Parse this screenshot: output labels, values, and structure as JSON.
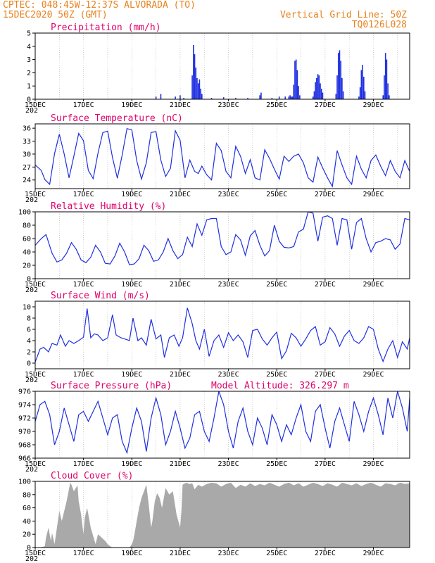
{
  "header": {
    "line1_left": "CPTEC:   048:45W-12:37S   ALVORADA (TO)",
    "line2_left": "15DEC2020 50Z (GMT)",
    "line1_right": "Vertical Grid Line: 50Z",
    "line2_right": "TQ0126L028"
  },
  "colors": {
    "header": "#e8821e",
    "panel_title": "#e0006a",
    "series": "#1f2fe0",
    "cloud": "#a9a9a9",
    "grid": "#b4b4b4"
  },
  "x_axis": {
    "tick_labels": [
      "15DEC",
      "17DEC",
      "19DEC",
      "21DEC",
      "23DEC",
      "25DEC",
      "27DEC",
      "29DEC"
    ],
    "year_fragment": "202",
    "range_days": [
      0,
      15.5
    ]
  },
  "chart_data": [
    {
      "id": "precip",
      "type": "bar",
      "title": "Precipitation (mm/h)",
      "ylim": [
        0,
        5
      ],
      "yticks": [
        0,
        1,
        2,
        3,
        4,
        5
      ],
      "bars": [
        [
          5.0,
          0.2
        ],
        [
          5.2,
          0.4
        ],
        [
          5.8,
          0.2
        ],
        [
          6.0,
          0.3
        ],
        [
          6.15,
          0.1
        ],
        [
          6.5,
          1.8
        ],
        [
          6.55,
          4.1
        ],
        [
          6.6,
          3.4
        ],
        [
          6.65,
          2.4
        ],
        [
          6.7,
          1.6
        ],
        [
          6.75,
          1.2
        ],
        [
          6.8,
          1.5
        ],
        [
          6.85,
          0.8
        ],
        [
          6.9,
          0.4
        ],
        [
          7.3,
          0.1
        ],
        [
          7.8,
          0.15
        ],
        [
          8.3,
          0.1
        ],
        [
          8.8,
          0.1
        ],
        [
          9.3,
          0.3
        ],
        [
          9.35,
          0.5
        ],
        [
          9.8,
          0.1
        ],
        [
          10.1,
          0.2
        ],
        [
          10.35,
          0.2
        ],
        [
          10.5,
          0.2
        ],
        [
          10.55,
          0.3
        ],
        [
          10.6,
          0.2
        ],
        [
          10.65,
          0.2
        ],
        [
          10.7,
          1.1
        ],
        [
          10.75,
          2.9
        ],
        [
          10.8,
          3.0
        ],
        [
          10.85,
          2.2
        ],
        [
          10.9,
          1.0
        ],
        [
          10.95,
          0.3
        ],
        [
          11.5,
          0.2
        ],
        [
          11.55,
          0.6
        ],
        [
          11.6,
          1.3
        ],
        [
          11.65,
          1.6
        ],
        [
          11.7,
          1.9
        ],
        [
          11.75,
          1.8
        ],
        [
          11.8,
          1.2
        ],
        [
          11.85,
          0.8
        ],
        [
          11.9,
          0.5
        ],
        [
          12.45,
          0.4
        ],
        [
          12.5,
          1.8
        ],
        [
          12.55,
          3.5
        ],
        [
          12.6,
          3.7
        ],
        [
          12.65,
          2.9
        ],
        [
          12.7,
          1.6
        ],
        [
          12.75,
          0.6
        ],
        [
          13.4,
          0.2
        ],
        [
          13.45,
          0.9
        ],
        [
          13.5,
          2.2
        ],
        [
          13.55,
          2.6
        ],
        [
          13.6,
          1.7
        ],
        [
          13.65,
          0.6
        ],
        [
          14.4,
          0.3
        ],
        [
          14.45,
          1.8
        ],
        [
          14.5,
          3.5
        ],
        [
          14.55,
          3.0
        ],
        [
          14.6,
          1.2
        ],
        [
          14.65,
          0.3
        ]
      ]
    },
    {
      "id": "temp",
      "type": "line",
      "title": "Surface Temperature (nC)",
      "ylim": [
        22,
        37
      ],
      "yticks": [
        24,
        27,
        30,
        33,
        36
      ],
      "x": [
        0,
        0.25,
        0.4,
        0.6,
        0.8,
        1.0,
        1.2,
        1.4,
        1.6,
        1.8,
        2.0,
        2.2,
        2.4,
        2.6,
        2.8,
        3.0,
        3.2,
        3.4,
        3.6,
        3.8,
        4.0,
        4.2,
        4.4,
        4.6,
        4.8,
        5.0,
        5.2,
        5.4,
        5.6,
        5.8,
        6.0,
        6.2,
        6.4,
        6.6,
        6.75,
        6.9,
        7.1,
        7.3,
        7.5,
        7.7,
        7.9,
        8.1,
        8.3,
        8.5,
        8.7,
        8.9,
        9.1,
        9.3,
        9.5,
        9.7,
        9.9,
        10.1,
        10.3,
        10.5,
        10.7,
        10.9,
        11.1,
        11.3,
        11.5,
        11.7,
        11.9,
        12.1,
        12.3,
        12.5,
        12.7,
        12.9,
        13.1,
        13.3,
        13.5,
        13.7,
        13.9,
        14.1,
        14.3,
        14.5,
        14.7,
        14.9,
        15.1,
        15.3,
        15.5
      ],
      "values": [
        27.5,
        26.2,
        24.1,
        23.0,
        30.1,
        34.6,
        30.0,
        24.5,
        29.5,
        34.8,
        33.1,
        26.2,
        24.3,
        30.2,
        35.0,
        35.3,
        29.2,
        24.4,
        29.8,
        35.9,
        35.6,
        28.5,
        24.2,
        28.0,
        35.0,
        35.2,
        28.6,
        24.8,
        26.7,
        35.4,
        33.2,
        24.5,
        28.6,
        26.0,
        25.5,
        27.2,
        25.2,
        24.0,
        32.5,
        30.8,
        26.0,
        24.5,
        31.8,
        29.5,
        25.5,
        28.7,
        24.5,
        24.0,
        31.0,
        29.0,
        26.5,
        24.2,
        29.5,
        28.3,
        29.5,
        30.0,
        28.0,
        24.5,
        23.5,
        29.3,
        26.8,
        24.5,
        22.5,
        30.8,
        27.5,
        24.5,
        23.0,
        29.5,
        26.5,
        24.5,
        28.5,
        29.8,
        27.2,
        25.0,
        28.5,
        26.0,
        24.5,
        28.5,
        26.0
      ]
    },
    {
      "id": "rh",
      "type": "line",
      "title": "Relative Humidity (%)",
      "ylim": [
        0,
        100
      ],
      "yticks": [
        0,
        20,
        40,
        60,
        80,
        100
      ],
      "x": [
        0,
        0.25,
        0.45,
        0.7,
        0.9,
        1.1,
        1.3,
        1.5,
        1.7,
        1.9,
        2.1,
        2.3,
        2.5,
        2.7,
        2.9,
        3.1,
        3.3,
        3.5,
        3.7,
        3.9,
        4.1,
        4.3,
        4.5,
        4.7,
        4.9,
        5.1,
        5.3,
        5.5,
        5.7,
        5.9,
        6.1,
        6.3,
        6.5,
        6.7,
        6.9,
        7.1,
        7.3,
        7.5,
        7.7,
        7.9,
        8.1,
        8.3,
        8.5,
        8.7,
        8.9,
        9.1,
        9.3,
        9.5,
        9.7,
        9.9,
        10.1,
        10.3,
        10.5,
        10.7,
        10.9,
        11.1,
        11.3,
        11.5,
        11.7,
        11.9,
        12.1,
        12.3,
        12.5,
        12.7,
        12.9,
        13.1,
        13.3,
        13.5,
        13.7,
        13.9,
        14.1,
        14.3,
        14.5,
        14.7,
        14.9,
        15.1,
        15.3,
        15.5
      ],
      "values": [
        50,
        60,
        66,
        38,
        25,
        28,
        38,
        54,
        44,
        28,
        24,
        32,
        50,
        40,
        23,
        22,
        34,
        53,
        40,
        21,
        22,
        30,
        50,
        42,
        26,
        28,
        40,
        60,
        42,
        30,
        36,
        62,
        48,
        82,
        65,
        88,
        90,
        90,
        48,
        36,
        40,
        66,
        58,
        35,
        64,
        72,
        50,
        34,
        42,
        80,
        56,
        47,
        46,
        48,
        70,
        74,
        100,
        98,
        56,
        92,
        94,
        90,
        50,
        90,
        88,
        44,
        84,
        90,
        60,
        40,
        54,
        56,
        60,
        58,
        44,
        52,
        90,
        88
      ]
    },
    {
      "id": "wind",
      "type": "line",
      "title": "Surface Wind (m/s)",
      "ylim": [
        -1,
        11
      ],
      "yticks": [
        0,
        2,
        4,
        6,
        8,
        10
      ],
      "x": [
        0,
        0.2,
        0.35,
        0.55,
        0.7,
        0.9,
        1.05,
        1.25,
        1.4,
        1.6,
        1.8,
        2.0,
        2.15,
        2.3,
        2.45,
        2.6,
        2.8,
        3.0,
        3.2,
        3.35,
        3.55,
        3.7,
        3.9,
        4.05,
        4.25,
        4.4,
        4.6,
        4.8,
        5.0,
        5.2,
        5.35,
        5.55,
        5.75,
        5.95,
        6.1,
        6.3,
        6.5,
        6.65,
        6.8,
        7.0,
        7.2,
        7.4,
        7.6,
        7.8,
        8.0,
        8.2,
        8.4,
        8.6,
        8.8,
        9.0,
        9.2,
        9.4,
        9.6,
        9.8,
        10.0,
        10.2,
        10.4,
        10.6,
        10.8,
        11.0,
        11.2,
        11.4,
        11.6,
        11.8,
        12.0,
        12.2,
        12.4,
        12.6,
        12.8,
        13.0,
        13.2,
        13.4,
        13.6,
        13.8,
        14.0,
        14.2,
        14.4,
        14.6,
        14.8,
        15.0,
        15.2,
        15.4,
        15.5
      ],
      "values": [
        0.2,
        2.5,
        2.8,
        2.0,
        3.5,
        3.2,
        5.0,
        3.0,
        4.0,
        3.5,
        4.0,
        4.6,
        9.7,
        4.5,
        5.2,
        5.0,
        4.0,
        4.5,
        8.6,
        5.0,
        4.5,
        4.3,
        4.0,
        8.0,
        4.0,
        4.5,
        3.2,
        7.8,
        4.3,
        5.0,
        1.0,
        4.5,
        5.0,
        3.0,
        4.5,
        9.8,
        7.0,
        4.0,
        2.5,
        6.0,
        1.2,
        4.0,
        5.0,
        2.8,
        5.4,
        4.0,
        5.0,
        3.8,
        1.0,
        5.8,
        6.0,
        4.3,
        3.2,
        4.5,
        5.5,
        0.8,
        2.2,
        5.3,
        4.5,
        3.0,
        4.3,
        5.8,
        6.5,
        3.2,
        3.8,
        6.3,
        5.2,
        3.0,
        4.8,
        5.8,
        4.0,
        3.5,
        4.5,
        6.5,
        6.0,
        2.5,
        0.3,
        2.5,
        4.0,
        1.0,
        3.8,
        2.5,
        4.5
      ]
    },
    {
      "id": "pressure",
      "type": "line",
      "title": "Surface Pressure (hPa)",
      "annotation": "Model Altitude: 326.297 m",
      "ylim": [
        966,
        976
      ],
      "yticks": [
        966,
        968,
        970,
        972,
        974,
        976
      ],
      "x": [
        0,
        0.2,
        0.4,
        0.6,
        0.8,
        1.0,
        1.2,
        1.4,
        1.6,
        1.8,
        2.0,
        2.2,
        2.4,
        2.6,
        2.8,
        3.0,
        3.2,
        3.4,
        3.6,
        3.8,
        4.0,
        4.2,
        4.4,
        4.6,
        4.8,
        5.0,
        5.2,
        5.4,
        5.6,
        5.8,
        6.0,
        6.2,
        6.4,
        6.6,
        6.8,
        7.0,
        7.2,
        7.4,
        7.6,
        7.8,
        8.0,
        8.2,
        8.4,
        8.6,
        8.8,
        9.0,
        9.2,
        9.4,
        9.6,
        9.8,
        10.0,
        10.2,
        10.4,
        10.6,
        10.8,
        11.0,
        11.2,
        11.4,
        11.6,
        11.8,
        12.0,
        12.2,
        12.4,
        12.6,
        12.8,
        13.0,
        13.2,
        13.4,
        13.6,
        13.8,
        14.0,
        14.2,
        14.4,
        14.6,
        14.8,
        15.0,
        15.2,
        15.4,
        15.5
      ],
      "values": [
        971.5,
        974.0,
        974.5,
        972.5,
        968.0,
        970.0,
        973.5,
        971.0,
        968.5,
        972.5,
        973.0,
        971.5,
        973.0,
        974.5,
        972.0,
        969.5,
        972.0,
        972.5,
        968.5,
        966.8,
        970.5,
        973.5,
        971.5,
        967.0,
        972.0,
        975.0,
        972.5,
        968.0,
        970.0,
        973.0,
        970.5,
        967.5,
        969.0,
        972.5,
        973.0,
        970.0,
        968.5,
        972.0,
        976.0,
        974.0,
        970.0,
        967.5,
        971.5,
        973.5,
        970.0,
        968.0,
        972.0,
        970.5,
        968.0,
        972.5,
        971.0,
        968.5,
        971.0,
        969.5,
        972.0,
        974.0,
        970.0,
        968.5,
        973.0,
        974.0,
        970.5,
        967.5,
        971.5,
        973.5,
        971.0,
        968.5,
        974.5,
        972.5,
        970.0,
        973.0,
        975.0,
        972.5,
        969.5,
        975.0,
        972.0,
        976.0,
        973.5,
        970.0,
        975.0
      ]
    },
    {
      "id": "cloud",
      "type": "area",
      "title": "Cloud Cover (%)",
      "ylim": [
        0,
        100
      ],
      "yticks": [
        0,
        20,
        40,
        60,
        80,
        100
      ],
      "x": [
        0,
        0.2,
        0.4,
        0.45,
        0.55,
        0.65,
        0.7,
        0.8,
        0.9,
        1.0,
        1.1,
        1.3,
        1.45,
        1.5,
        1.6,
        1.75,
        1.8,
        1.9,
        2.0,
        2.05,
        2.15,
        2.3,
        2.5,
        2.6,
        2.75,
        2.9,
        3.0,
        3.1,
        3.2,
        3.3,
        3.5,
        3.7,
        3.9,
        4.0,
        4.05,
        4.1,
        4.2,
        4.3,
        4.4,
        4.5,
        4.6,
        4.7,
        4.8,
        4.85,
        4.95,
        5.05,
        5.15,
        5.25,
        5.4,
        5.55,
        5.7,
        5.85,
        6.0,
        6.05,
        6.1,
        6.25,
        6.4,
        6.5,
        6.6,
        6.75,
        6.9,
        7.1,
        7.3,
        7.5,
        7.7,
        7.9,
        8.1,
        8.3,
        8.5,
        8.7,
        8.9,
        9.1,
        9.3,
        9.5,
        9.7,
        9.9,
        10.1,
        10.3,
        10.5,
        10.7,
        10.9,
        11.1,
        11.3,
        11.5,
        11.7,
        11.9,
        12.1,
        12.3,
        12.5,
        12.7,
        12.9,
        13.1,
        13.3,
        13.5,
        13.7,
        13.9,
        14.1,
        14.3,
        14.5,
        14.7,
        14.9,
        15.1,
        15.3,
        15.5
      ],
      "values": [
        0,
        0,
        2,
        15,
        30,
        10,
        22,
        5,
        30,
        55,
        40,
        70,
        98,
        95,
        85,
        94,
        70,
        50,
        20,
        45,
        60,
        30,
        5,
        20,
        15,
        10,
        5,
        2,
        0,
        0,
        0,
        0,
        0,
        5,
        10,
        18,
        40,
        60,
        75,
        85,
        95,
        65,
        30,
        40,
        70,
        82,
        75,
        60,
        90,
        80,
        85,
        50,
        30,
        55,
        95,
        98,
        96,
        97,
        88,
        95,
        92,
        96,
        98,
        97,
        92,
        96,
        98,
        90,
        95,
        92,
        97,
        93,
        96,
        94,
        98,
        95,
        92,
        96,
        98,
        94,
        97,
        92,
        95,
        98,
        96,
        93,
        97,
        95,
        92,
        98,
        96,
        94,
        97,
        93,
        96,
        98,
        95,
        92,
        97,
        96,
        94,
        98,
        96,
        97
      ]
    }
  ]
}
